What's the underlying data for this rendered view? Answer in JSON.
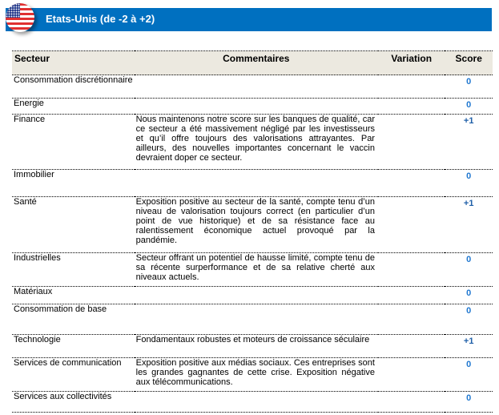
{
  "header": {
    "title": "Etats-Unis  (de -2 à +2)",
    "flag_icon": "us-flag-icon",
    "color": "#0070c0"
  },
  "table": {
    "columns": [
      "Secteur",
      "Commentaires",
      "Variation",
      "Score"
    ],
    "rows": [
      {
        "secteur": "Consommation discrétionnaire",
        "commentaire": "",
        "variation": "",
        "score": "0"
      },
      {
        "secteur": "Energie",
        "commentaire": "",
        "variation": "",
        "score": "0"
      },
      {
        "secteur": "Finance",
        "commentaire": "Nous maintenons notre score sur les banques de qualité, car ce secteur a été massivement négligé par les investisseurs et qu’il offre toujours des valorisations attrayantes. Par ailleurs, des nouvelles importantes concernant le vaccin devraient doper ce secteur.",
        "variation": "",
        "score": "+1"
      },
      {
        "secteur": "Immobilier",
        "commentaire": "",
        "variation": "",
        "score": "0"
      },
      {
        "secteur": "Santé",
        "commentaire": "Exposition positive au secteur de la santé, compte tenu d’un niveau de valorisation toujours correct (en particulier d’un point de vue historique) et de sa résistance face au ralentissement économique actuel provoqué par la pandémie.",
        "variation": "",
        "score": "+1"
      },
      {
        "secteur": "Industrielles",
        "commentaire": "Secteur offrant un potentiel de hausse limité, compte tenu de sa récente surperformance et de sa relative cherté aux niveaux actuels.",
        "variation": "",
        "score": "0"
      },
      {
        "secteur": "Matériaux",
        "commentaire": "",
        "variation": "",
        "score": "0"
      },
      {
        "secteur": "Consommation de base",
        "commentaire": "",
        "variation": "",
        "score": "0"
      },
      {
        "secteur": "Technologie",
        "commentaire": "Fondamentaux robustes et moteurs de croissance séculaire",
        "variation": "",
        "score": "+1"
      },
      {
        "secteur": "Services de communication",
        "commentaire": "Exposition positive aux médias sociaux. Ces entreprises sont les grandes gagnantes de cette crise. Exposition négative aux télécommunications.",
        "variation": "",
        "score": "0"
      },
      {
        "secteur": "Services aux collectivités",
        "commentaire": "",
        "variation": "",
        "score": "0"
      }
    ]
  }
}
